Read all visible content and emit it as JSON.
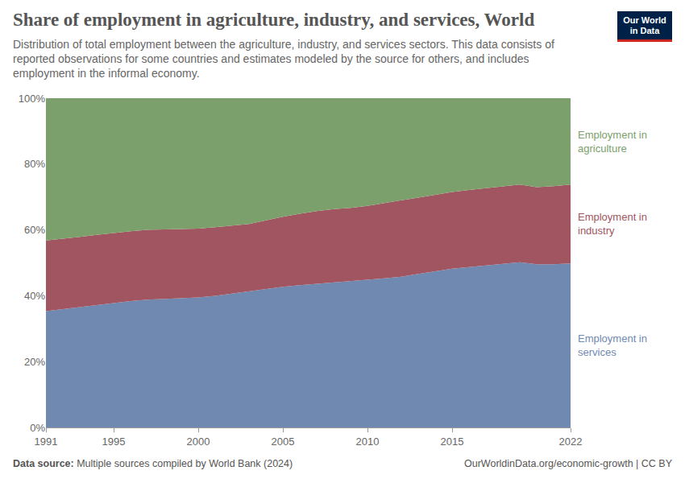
{
  "chart_data": {
    "type": "area",
    "stacked": true,
    "title": "Share of employment in agriculture, industry, and services, World",
    "subtitle": "Distribution of total employment between the agriculture, industry, and services sectors. This data consists of reported observations for some countries and estimates modeled by the source for others, and includes employment in the informal economy.",
    "source": "Data source: Multiple sources compiled by World Bank (2024)",
    "footer": "OurWorldinData.org/economic-growth | CC BY",
    "logo": "Our World in Data",
    "x": [
      1991,
      1992,
      1993,
      1994,
      1995,
      1996,
      1997,
      1998,
      1999,
      2000,
      2001,
      2002,
      2003,
      2004,
      2005,
      2006,
      2007,
      2008,
      2009,
      2010,
      2011,
      2012,
      2013,
      2014,
      2015,
      2016,
      2017,
      2018,
      2019,
      2020,
      2021,
      2022
    ],
    "series": [
      {
        "name": "Employment in services",
        "color": "#6f89b1",
        "values": [
          35.3,
          35.9,
          36.6,
          37.2,
          37.8,
          38.4,
          38.8,
          39.0,
          39.2,
          39.5,
          40.0,
          40.7,
          41.3,
          42.0,
          42.7,
          43.2,
          43.6,
          44.0,
          44.5,
          44.8,
          45.3,
          45.8,
          46.6,
          47.4,
          48.2,
          48.7,
          49.2,
          49.7,
          50.2,
          49.6,
          49.6,
          49.8
        ]
      },
      {
        "name": "Employment in industry",
        "color": "#a05560",
        "values": [
          21.5,
          21.4,
          21.3,
          21.3,
          21.3,
          21.2,
          21.2,
          21.1,
          21.0,
          20.9,
          20.8,
          20.6,
          20.5,
          20.9,
          21.3,
          21.7,
          22.1,
          22.3,
          22.2,
          22.5,
          22.9,
          23.2,
          23.2,
          23.3,
          23.3,
          23.4,
          23.5,
          23.6,
          23.6,
          23.4,
          23.7,
          24.0
        ]
      },
      {
        "name": "Employment in agriculture",
        "color": "#7ba06b",
        "values": [
          43.2,
          42.7,
          42.1,
          41.5,
          40.9,
          40.4,
          40.0,
          39.9,
          39.8,
          39.6,
          39.2,
          38.7,
          38.2,
          37.1,
          36.0,
          35.1,
          34.3,
          33.7,
          33.3,
          32.7,
          31.8,
          31.0,
          30.2,
          29.3,
          28.5,
          27.9,
          27.3,
          26.7,
          26.2,
          27.0,
          26.7,
          26.2
        ]
      }
    ],
    "xlim": [
      1991,
      2022
    ],
    "xticks": [
      1991,
      1995,
      2000,
      2005,
      2010,
      2015,
      2022
    ],
    "ylim": [
      0,
      100
    ],
    "yticks": [
      {
        "value": 0,
        "label": "0%"
      },
      {
        "value": 20,
        "label": "20%"
      },
      {
        "value": 40,
        "label": "40%"
      },
      {
        "value": 60,
        "label": "60%"
      },
      {
        "value": 80,
        "label": "80%"
      },
      {
        "value": 100,
        "label": "100%"
      }
    ],
    "grid": true
  }
}
